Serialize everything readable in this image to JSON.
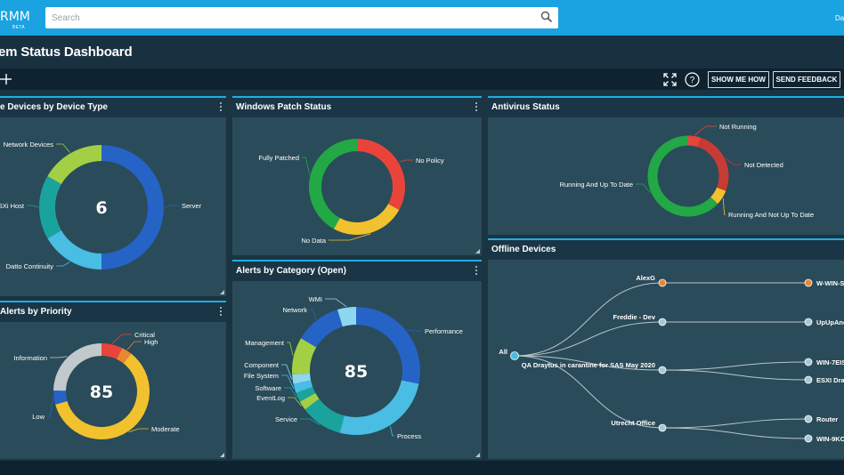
{
  "app": {
    "brand": "RMM",
    "beta": "BETA",
    "user": "Da"
  },
  "search": {
    "placeholder": "Search"
  },
  "page": {
    "title": "em Status Dashboard"
  },
  "toolbar": {
    "show_me_how": "SHOW ME HOW",
    "send_feedback": "SEND FEEDBACK"
  },
  "colors": {
    "accent": "#1aa3e0",
    "panel": "#2a4b59",
    "blue": "#2563c7",
    "teal": "#1aa39c",
    "lightblue": "#49bde3",
    "green": "#22a845",
    "red": "#e9443a",
    "yellow": "#f2c12e",
    "lime": "#a3cf45",
    "grey": "#c2c9cc",
    "orange": "#ea8633",
    "darkred": "#c63b33"
  },
  "icons": {
    "search": "search-icon",
    "add": "plus-icon",
    "expand": "expand-icon",
    "help": "help-icon",
    "menu": "kebab-menu-icon"
  },
  "panels": {
    "device_type": {
      "title": "e Devices by Device Type",
      "total": "6"
    },
    "patch": {
      "title": "Windows Patch Status"
    },
    "antivirus": {
      "title": "Antivirus Status"
    },
    "priority": {
      "title": "Alerts by Priority",
      "total": "85"
    },
    "category": {
      "title": "Alerts by Category (Open)",
      "total": "85"
    },
    "offline": {
      "title": "Offline Devices"
    }
  },
  "chart_data": [
    {
      "type": "pie",
      "title": "e Devices by Device Type",
      "center": "6",
      "slices": [
        {
          "label": "Server",
          "value": 3,
          "color": "#2563c7"
        },
        {
          "label": "Datto Continuity",
          "value": 1,
          "color": "#49bde3"
        },
        {
          "label": "ESXi Host",
          "value": 1,
          "color": "#1aa39c"
        },
        {
          "label": "Network Devices",
          "value": 1,
          "color": "#a3cf45"
        }
      ]
    },
    {
      "type": "pie",
      "title": "Windows Patch Status",
      "slices": [
        {
          "label": "No Policy",
          "value": 33,
          "color": "#e9443a"
        },
        {
          "label": "No Data",
          "value": 25,
          "color": "#f2c12e"
        },
        {
          "label": "Fully Patched",
          "value": 42,
          "color": "#22a845"
        }
      ]
    },
    {
      "type": "pie",
      "title": "Antivirus Status",
      "slices": [
        {
          "label": "Not Running",
          "value": 5,
          "color": "#e9443a"
        },
        {
          "label": "Not Detected",
          "value": 26,
          "color": "#c63b33"
        },
        {
          "label": "Running And Not Up To Date",
          "value": 6,
          "color": "#f2c12e"
        },
        {
          "label": "Running And Up To Date",
          "value": 63,
          "color": "#22a845"
        }
      ]
    },
    {
      "type": "pie",
      "title": "Alerts by Priority",
      "center": "85",
      "slices": [
        {
          "label": "Critical",
          "value": 6,
          "color": "#e9443a"
        },
        {
          "label": "High",
          "value": 3,
          "color": "#ea8633"
        },
        {
          "label": "Moderate",
          "value": 51,
          "color": "#f2c12e"
        },
        {
          "label": "Low",
          "value": 4,
          "color": "#2563c7"
        },
        {
          "label": "Information",
          "value": 21,
          "color": "#c2c9cc"
        }
      ]
    },
    {
      "type": "pie",
      "title": "Alerts by Category (Open)",
      "center": "85",
      "slices": [
        {
          "label": "Performance",
          "value": 24,
          "color": "#2563c7"
        },
        {
          "label": "Process",
          "value": 22,
          "color": "#49bde3"
        },
        {
          "label": "Service",
          "value": 9,
          "color": "#1aa39c"
        },
        {
          "label": "EventLog",
          "value": 2,
          "color": "#a3cf45"
        },
        {
          "label": "Software",
          "value": 2,
          "color": "#1aa39c"
        },
        {
          "label": "File System",
          "value": 2,
          "color": "#49bde3"
        },
        {
          "label": "Component",
          "value": 2,
          "color": "#8fd7ef"
        },
        {
          "label": "Management",
          "value": 8,
          "color": "#a3cf45"
        },
        {
          "label": "Network",
          "value": 10,
          "color": "#2563c7"
        },
        {
          "label": "WMI",
          "value": 4,
          "color": "#8fd7ef"
        }
      ]
    }
  ],
  "tree": {
    "root": "All",
    "groups": [
      {
        "label": "AlexG",
        "color": "#ea8633",
        "children": [
          {
            "label": "W-WIN-S",
            "color": "#ea8633"
          }
        ]
      },
      {
        "label": "Freddie - Dev",
        "color": "#a9c7d6",
        "children": [
          {
            "label": "UpUpAnd",
            "color": "#a9c7d6"
          }
        ]
      },
      {
        "label": "QA Draytus in carantine for SAS May 2020",
        "color": "#a9c7d6",
        "children": [
          {
            "label": "WIN-7EIS",
            "color": "#a9c7d6"
          },
          {
            "label": "ESXI Dray",
            "color": "#a9c7d6"
          }
        ]
      },
      {
        "label": "Utrecht Office",
        "color": "#a9c7d6",
        "children": [
          {
            "label": "Router",
            "color": "#a9c7d6"
          },
          {
            "label": "WIN-9KO",
            "color": "#a9c7d6"
          }
        ]
      }
    ]
  }
}
